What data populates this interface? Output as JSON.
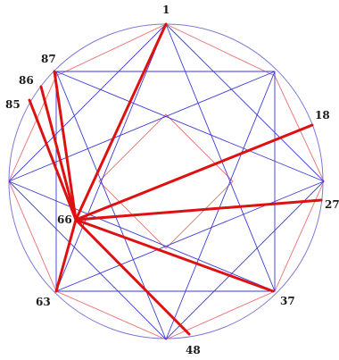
{
  "diagram": {
    "labels": {
      "n1": "1",
      "n18": "18",
      "n27": "27",
      "n37": "37",
      "n48": "48",
      "n63": "63",
      "n66": "66",
      "n85": "85",
      "n86": "86",
      "n87": "87"
    },
    "colors": {
      "circle": "#7b7bd6",
      "blue_lines": "#3a3ad8",
      "thin_red_lines": "#e87070",
      "thick_red_lines": "#dd1111",
      "label_text": "#1a1a1a"
    }
  }
}
